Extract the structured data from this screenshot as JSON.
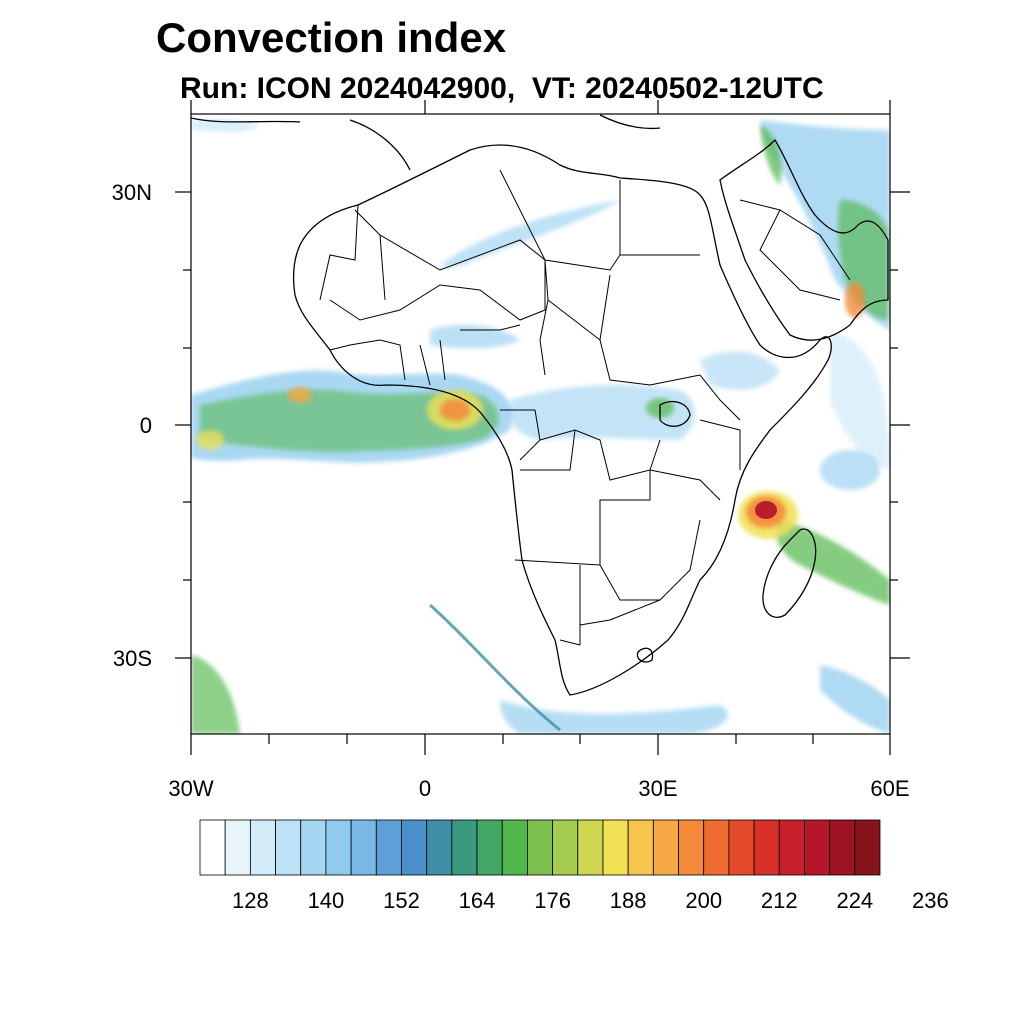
{
  "title": "Convection index",
  "subtitle": "Run: ICON 2024042900,  VT: 20240502-12UTC",
  "axes": {
    "lat_labels": [
      "30N",
      "0",
      "30S"
    ],
    "lon_labels": [
      "30W",
      "0",
      "30E",
      "60E"
    ]
  },
  "colorbar": {
    "labels": [
      "128",
      "140",
      "152",
      "164",
      "176",
      "188",
      "200",
      "212",
      "224",
      "236"
    ],
    "colors": [
      "#ffffff",
      "#e8f4fb",
      "#d2ebf8",
      "#bde2f5",
      "#a4d6f2",
      "#8ecbee",
      "#78b9e6",
      "#5f9fd8",
      "#4b8fcb",
      "#3e8ea8",
      "#3a9a80",
      "#44a765",
      "#52b74b",
      "#7dc04d",
      "#a6cc4f",
      "#cfd652",
      "#f0e155",
      "#f5c54e",
      "#f5a843",
      "#f48b3a",
      "#ee6c31",
      "#e34b2a",
      "#d93127",
      "#c8202a",
      "#b5162a",
      "#9e1324",
      "#87131d"
    ]
  },
  "map": {
    "features": [
      "land-outline",
      "country-borders",
      "itcz-convection-band",
      "cyclone-madagascar",
      "arabian-peninsula-convection"
    ]
  }
}
